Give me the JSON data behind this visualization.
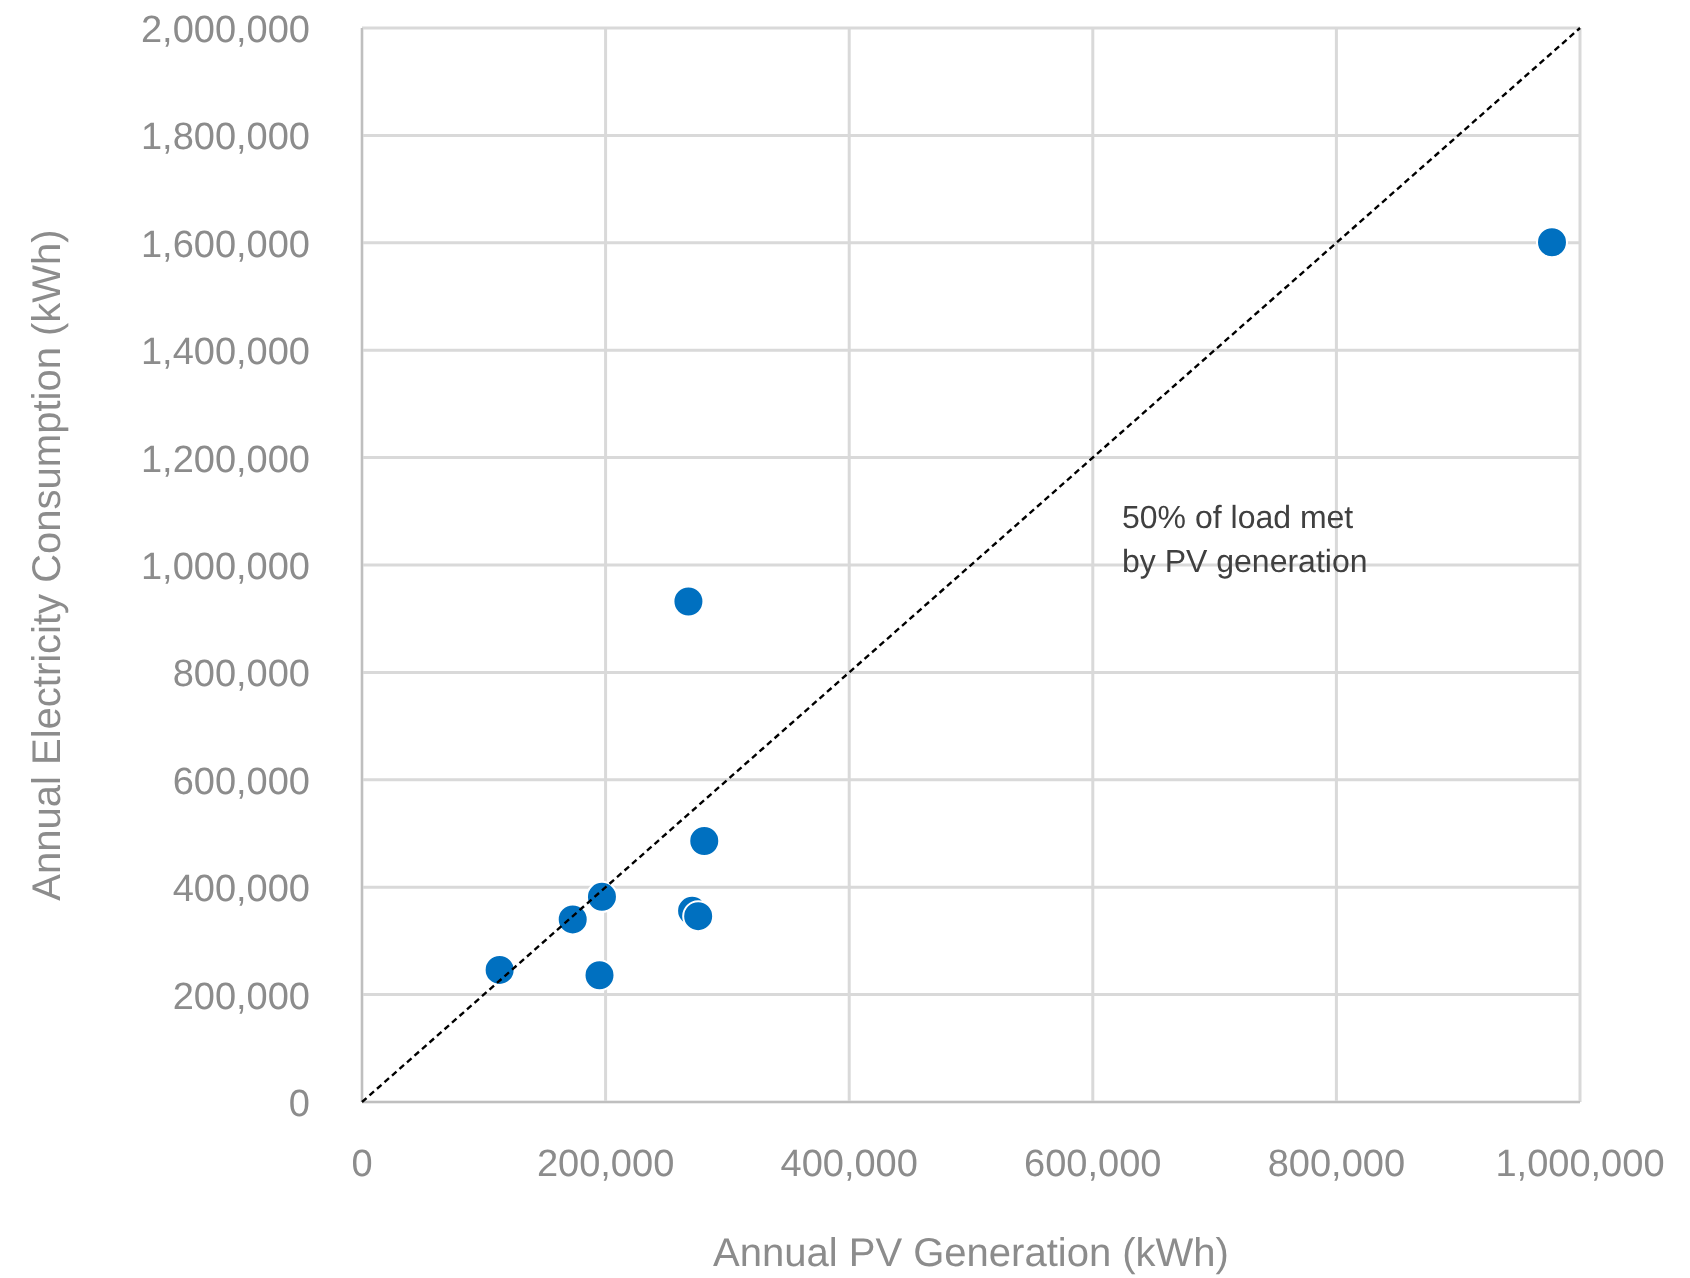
{
  "chart_data": {
    "type": "scatter",
    "xlabel": "Annual PV Generation (kWh)",
    "ylabel": "Annual Electricity Consumption (kWh)",
    "xlim": [
      0,
      1000000
    ],
    "ylim": [
      0,
      2000000
    ],
    "xticks": [
      {
        "value": 0,
        "label": "0"
      },
      {
        "value": 200000,
        "label": "200,000"
      },
      {
        "value": 400000,
        "label": "400,000"
      },
      {
        "value": 600000,
        "label": "600,000"
      },
      {
        "value": 800000,
        "label": "800,000"
      },
      {
        "value": 1000000,
        "label": "1,000,000"
      }
    ],
    "yticks": [
      {
        "value": 0,
        "label": "0"
      },
      {
        "value": 200000,
        "label": "200,000"
      },
      {
        "value": 400000,
        "label": "400,000"
      },
      {
        "value": 600000,
        "label": "600,000"
      },
      {
        "value": 800000,
        "label": "800,000"
      },
      {
        "value": 1000000,
        "label": "1,000,000"
      },
      {
        "value": 1200000,
        "label": "1,200,000"
      },
      {
        "value": 1400000,
        "label": "1,400,000"
      },
      {
        "value": 1600000,
        "label": "1,600,000"
      },
      {
        "value": 1800000,
        "label": "1,800,000"
      },
      {
        "value": 2000000,
        "label": "2,000,000"
      }
    ],
    "grid": true,
    "marker": "circle",
    "series": [
      {
        "color": "#0070c0",
        "x": [
          113000,
          173000,
          197000,
          195000,
          268000,
          271000,
          276000,
          281000,
          977000
        ],
        "values": [
          246000,
          340000,
          382000,
          236000,
          932000,
          356000,
          346000,
          486000,
          1601000
        ]
      },
      {
        "type": "line",
        "color": "#000000",
        "line_style": "dashed",
        "marker": "none",
        "x": [
          0,
          1000000
        ],
        "values": [
          0,
          2000000
        ]
      }
    ],
    "annotations": [
      "50% of load met\nby PV generation"
    ]
  }
}
